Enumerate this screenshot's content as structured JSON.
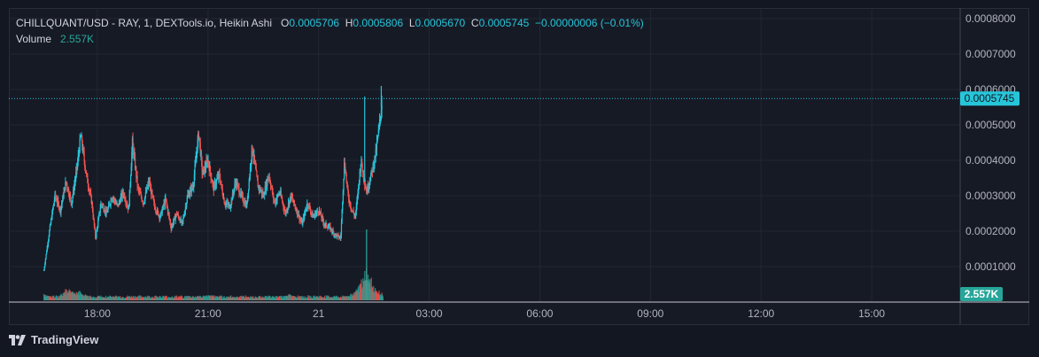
{
  "legend": {
    "title": "CHILLQUANT/USD - RAY, 1, DEXTools.io, Heikin Ashi",
    "open_label": "O",
    "open": "0.0005706",
    "high_label": "H",
    "high": "0.0005806",
    "low_label": "L",
    "low": "0.0005670",
    "close_label": "C",
    "close": "0.0005745",
    "change": "−0.00000006 (−0.01%)",
    "volume_label": "Volume",
    "volume": "2.557K"
  },
  "price_tag": "0.0005745",
  "volume_tag": "2.557K",
  "footer": {
    "brand": "TradingView",
    "logo_icon": "tradingview-logo-icon"
  },
  "colors": {
    "up": "#26c6da",
    "down": "#ef5350",
    "vol_up": "#26a69a",
    "vol_down": "#ef5350",
    "bg": "#131722",
    "grid": "#232733",
    "text": "#d1d4dc"
  },
  "chart_data": {
    "type": "candlestick",
    "title": "CHILLQUANT/USD - RAY, 1, DEXTools.io, Heikin Ashi",
    "y_ticks": [
      "0.0008000",
      "0.0007000",
      "0.0006000",
      "0.0005000",
      "0.0004000",
      "0.0003000",
      "0.0002000",
      "0.0001000"
    ],
    "y_tick_values": [
      0.0008,
      0.0007,
      0.0006,
      0.0005,
      0.0004,
      0.0003,
      0.0002,
      0.0001
    ],
    "x_ticks": [
      "18:00",
      "21:00",
      "21",
      "03:00",
      "06:00",
      "09:00",
      "12:00",
      "15:00"
    ],
    "x_tick_hours": [
      18,
      21,
      24,
      27,
      30,
      33,
      36,
      39
    ],
    "ylim": [
      0.0,
      0.00083
    ],
    "xlim_hours": [
      15.6,
      41.4
    ],
    "last_close": 0.0005745,
    "last_volume": "2.557K",
    "grid": true,
    "series_path": [
      [
        16.55,
        9e-05
      ],
      [
        16.7,
        0.0002
      ],
      [
        16.85,
        0.0003
      ],
      [
        17.0,
        0.00026
      ],
      [
        17.15,
        0.00034
      ],
      [
        17.3,
        0.00028
      ],
      [
        17.45,
        0.00038
      ],
      [
        17.55,
        0.00047
      ],
      [
        17.7,
        0.00036
      ],
      [
        17.85,
        0.00028
      ],
      [
        17.95,
        0.00018
      ],
      [
        18.1,
        0.00028
      ],
      [
        18.25,
        0.00025
      ],
      [
        18.4,
        0.0003
      ],
      [
        18.55,
        0.00027
      ],
      [
        18.7,
        0.00031
      ],
      [
        18.85,
        0.00026
      ],
      [
        18.95,
        0.00045
      ],
      [
        19.1,
        0.00032
      ],
      [
        19.25,
        0.00028
      ],
      [
        19.4,
        0.00034
      ],
      [
        19.55,
        0.00027
      ],
      [
        19.7,
        0.00024
      ],
      [
        19.85,
        0.00029
      ],
      [
        20.0,
        0.00021
      ],
      [
        20.15,
        0.00025
      ],
      [
        20.3,
        0.00022
      ],
      [
        20.45,
        0.0003
      ],
      [
        20.6,
        0.00033
      ],
      [
        20.75,
        0.00048
      ],
      [
        20.85,
        0.00036
      ],
      [
        21.0,
        0.0004
      ],
      [
        21.15,
        0.00032
      ],
      [
        21.3,
        0.00036
      ],
      [
        21.45,
        0.00028
      ],
      [
        21.6,
        0.00027
      ],
      [
        21.75,
        0.00034
      ],
      [
        21.9,
        0.0003
      ],
      [
        22.05,
        0.00027
      ],
      [
        22.2,
        0.00044
      ],
      [
        22.35,
        0.00033
      ],
      [
        22.5,
        0.0003
      ],
      [
        22.65,
        0.00036
      ],
      [
        22.8,
        0.00028
      ],
      [
        22.95,
        0.00031
      ],
      [
        23.1,
        0.00025
      ],
      [
        23.25,
        0.0003
      ],
      [
        23.4,
        0.00026
      ],
      [
        23.55,
        0.00022
      ],
      [
        23.7,
        0.00028
      ],
      [
        23.85,
        0.00024
      ],
      [
        24.0,
        0.00026
      ],
      [
        24.15,
        0.00022
      ],
      [
        24.3,
        0.00021
      ],
      [
        24.45,
        0.00019
      ],
      [
        24.6,
        0.00018
      ],
      [
        24.7,
        0.0004
      ],
      [
        24.8,
        0.0003
      ],
      [
        24.9,
        0.00026
      ],
      [
        25.0,
        0.00024
      ],
      [
        25.15,
        0.0004
      ],
      [
        25.3,
        0.00031
      ],
      [
        25.45,
        0.00037
      ],
      [
        25.55,
        0.00042
      ],
      [
        25.65,
        0.0005
      ],
      [
        25.72,
        0.00057
      ]
    ],
    "volume_series": {
      "hours_start": 16.55,
      "hours_end": 25.75,
      "peaks": [
        [
          16.55,
          0.5
        ],
        [
          17.2,
          1.0
        ],
        [
          17.5,
          0.8
        ],
        [
          18.1,
          0.3
        ],
        [
          21.1,
          0.5
        ],
        [
          23.2,
          0.5
        ],
        [
          25.05,
          0.9
        ],
        [
          25.3,
          2.5
        ],
        [
          25.6,
          0.8
        ]
      ]
    }
  }
}
